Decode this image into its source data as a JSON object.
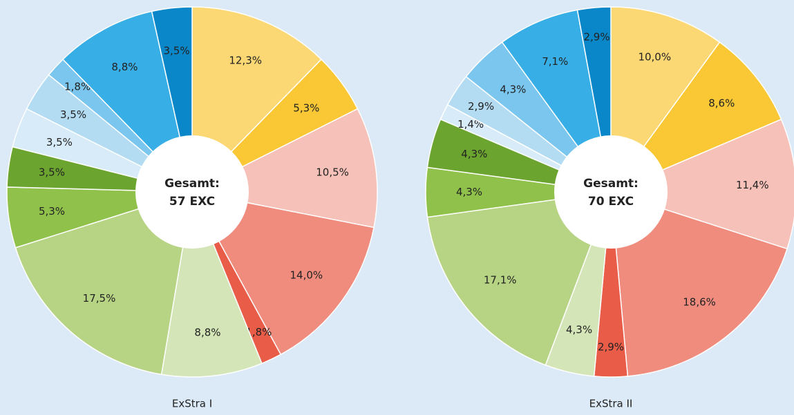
{
  "chart_data": [
    {
      "type": "pie",
      "title": "ExStra I",
      "center_label": [
        "Gesamt:",
        "57 EXC"
      ],
      "values": [
        12.3,
        5.3,
        10.5,
        14.0,
        1.8,
        8.8,
        17.5,
        5.3,
        3.5,
        3.5,
        3.5,
        1.8,
        8.8,
        3.5
      ],
      "value_labels": [
        "12,3%",
        "5,3%",
        "10,5%",
        "14,0%",
        "1,8%",
        "8,8%",
        "17,5%",
        "5,3%",
        "3,5%",
        "3,5%",
        "3,5%",
        "1,8%",
        "8,8%",
        "3,5%"
      ],
      "colors": [
        "#fcd874",
        "#f9c834",
        "#f6c1b8",
        "#f08c7e",
        "#e85c48",
        "#d4e5b8",
        "#b6d483",
        "#90c24b",
        "#6ba42f",
        "#d7ecf8",
        "#b3dcf3",
        "#7ac6ee",
        "#37aee5",
        "#0a87c9"
      ]
    },
    {
      "type": "pie",
      "title": "ExStra II",
      "center_label": [
        "Gesamt:",
        "70 EXC"
      ],
      "values": [
        10.0,
        8.6,
        11.4,
        18.6,
        2.9,
        4.3,
        17.1,
        4.3,
        4.3,
        1.4,
        2.9,
        4.3,
        7.1,
        2.9
      ],
      "value_labels": [
        "10,0%",
        "8,6%",
        "11,4%",
        "18,6%",
        "2,9%",
        "4,3%",
        "17,1%",
        "4,3%",
        "4,3%",
        "1,4%",
        "2,9%",
        "4,3%",
        "7,1%",
        "2,9%"
      ],
      "colors": [
        "#fcd874",
        "#f9c834",
        "#f6c1b8",
        "#f08c7e",
        "#e85c48",
        "#d4e5b8",
        "#b6d483",
        "#90c24b",
        "#6ba42f",
        "#d7ecf8",
        "#b3dcf3",
        "#7ac6ee",
        "#37aee5",
        "#0a87c9"
      ]
    }
  ]
}
